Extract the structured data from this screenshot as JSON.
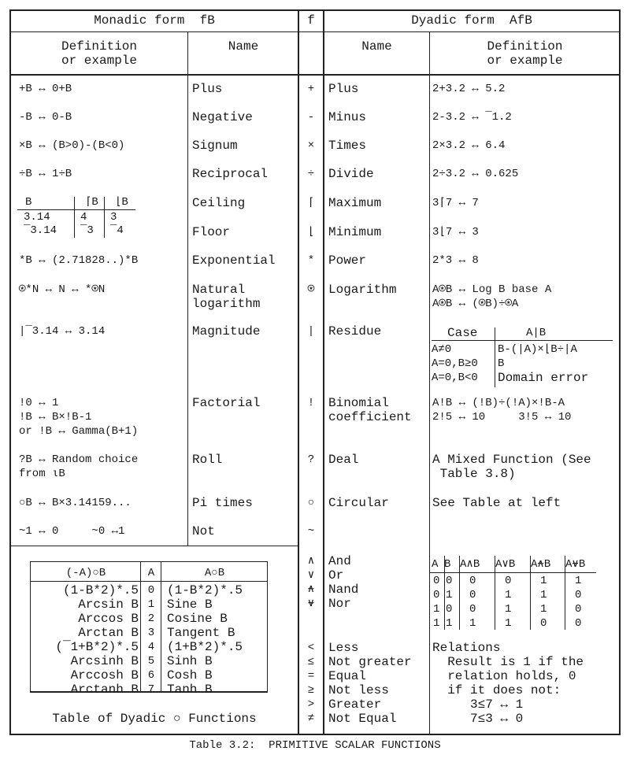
{
  "header": {
    "monadic": "Monadic form  fB",
    "f": "f",
    "dyadic": "Dyadic form  AfB"
  },
  "subheader": {
    "monadic_def": [
      "Definition",
      "or example"
    ],
    "monadic_name": "Name",
    "dyadic_name": "Name",
    "dyadic_def": [
      "Definition",
      "or example"
    ]
  },
  "monadic": [
    {
      "def": [
        "+B ↔ 0+B"
      ],
      "name": [
        "Plus"
      ]
    },
    {
      "def": [
        "-B ↔ 0-B"
      ],
      "name": [
        "Negative"
      ]
    },
    {
      "def": [
        "×B ↔ (B>0)-(B<0)"
      ],
      "name": [
        "Signum"
      ]
    },
    {
      "def": [
        "÷B ↔ 1÷B"
      ],
      "name": [
        "Reciprocal"
      ]
    },
    {
      "def": [],
      "name": [
        "Ceiling"
      ]
    },
    {
      "def": [],
      "name": [
        "Floor"
      ]
    },
    {
      "def": [
        "*B ↔ (2.71828..)*B"
      ],
      "name": [
        "Exponential"
      ]
    },
    {
      "def": [
        "⍟*N ↔ N ↔ *⍟N"
      ],
      "name": [
        "Natural",
        "logarithm"
      ]
    },
    {
      "def": [
        "|¯3.14 ↔ 3.14"
      ],
      "name": [
        "Magnitude"
      ]
    },
    {
      "def": [
        "!0 ↔ 1",
        "!B ↔ B×!B-1",
        "or !B ↔ Gamma(B+1)"
      ],
      "name": [
        "Factorial"
      ]
    },
    {
      "def": [
        "?B ↔ Random choice",
        "from ⍳B"
      ],
      "name": [
        "Roll"
      ]
    },
    {
      "def": [
        "○B ↔ B×3.14159..."
      ],
      "name": [
        "Pi times"
      ]
    },
    {
      "def": [
        "~1 ↔ 0     ~0 ↔1"
      ],
      "name": [
        "Not"
      ]
    }
  ],
  "ceiling_floor_table": {
    "headers": [
      "B",
      "⌈B",
      "⌊B"
    ],
    "rows": [
      [
        "3.14",
        "4",
        "3"
      ],
      [
        "¯3.14",
        "¯3",
        "¯4"
      ]
    ]
  },
  "symbols": [
    "+",
    "-",
    "×",
    "÷",
    "⌈",
    "⌊",
    "*",
    "⍟",
    "|",
    "!",
    "?",
    "○",
    "~",
    "∧",
    "∨",
    "⍲",
    "⍱",
    "<",
    "≤",
    "=",
    "≥",
    ">",
    "≠"
  ],
  "dyadic": [
    {
      "name": [
        "Plus"
      ],
      "def": [
        "2+3.2 ↔ 5.2"
      ]
    },
    {
      "name": [
        "Minus"
      ],
      "def": [
        "2-3.2 ↔ ¯1.2"
      ]
    },
    {
      "name": [
        "Times"
      ],
      "def": [
        "2×3.2 ↔ 6.4"
      ]
    },
    {
      "name": [
        "Divide"
      ],
      "def": [
        "2÷3.2 ↔ 0.625"
      ]
    },
    {
      "name": [
        "Maximum"
      ],
      "def": [
        "3⌈7 ↔ 7"
      ]
    },
    {
      "name": [
        "Minimum"
      ],
      "def": [
        "3⌊7 ↔ 3"
      ]
    },
    {
      "name": [
        "Power"
      ],
      "def": [
        "2*3 ↔ 8"
      ]
    },
    {
      "name": [
        "Logarithm"
      ],
      "def": [
        "A⍟B ↔ Log B base A",
        "A⍟B ↔ (⍟B)÷⍟A"
      ]
    },
    {
      "name": [
        "Residue"
      ],
      "def": []
    },
    {
      "name": [
        "Binomial",
        "coefficient"
      ],
      "def": [
        "A!B ↔ (!B)÷(!A)×!B-A",
        "2!5 ↔ 10     3!5 ↔ 10"
      ]
    },
    {
      "name": [
        "Deal"
      ],
      "def": [
        "A Mixed Function (See",
        " Table 3.8)"
      ]
    },
    {
      "name": [
        "Circular"
      ],
      "def": [
        "See Table at left"
      ]
    },
    {
      "name": [],
      "def": []
    },
    {
      "name": [
        "And"
      ],
      "def": []
    },
    {
      "name": [
        "Or"
      ],
      "def": []
    },
    {
      "name": [
        "Nand"
      ],
      "def": []
    },
    {
      "name": [
        "Nor"
      ],
      "def": []
    },
    {
      "name": [
        "Less"
      ],
      "def": [
        "Relations"
      ]
    },
    {
      "name": [
        "Not greater"
      ],
      "def": [
        "  Result is 1 if the"
      ]
    },
    {
      "name": [
        "Equal"
      ],
      "def": [
        "  relation holds, 0"
      ]
    },
    {
      "name": [
        "Not less"
      ],
      "def": [
        "  if it does not:"
      ]
    },
    {
      "name": [
        "Greater"
      ],
      "def": [
        "     3≤7 ↔ 1"
      ]
    },
    {
      "name": [
        "Not Equal"
      ],
      "def": [
        "     7≤3 ↔ 0"
      ]
    }
  ],
  "residue_table": {
    "headers": [
      "Case",
      "A|B"
    ],
    "rows": [
      [
        "A≠0",
        "B-(|A)×⌊B÷|A"
      ],
      [
        "A=0,B≥0",
        "B"
      ],
      [
        "A=0,B<0",
        "Domain error"
      ]
    ]
  },
  "boolean_table": {
    "headers": [
      "A",
      "B",
      "A∧B",
      "A∨B",
      "A⍲B",
      "A⍱B"
    ],
    "rows": [
      [
        "0",
        "0",
        "0",
        "0",
        "1",
        "1"
      ],
      [
        "0",
        "1",
        "0",
        "1",
        "1",
        "0"
      ],
      [
        "1",
        "0",
        "0",
        "1",
        "1",
        "0"
      ],
      [
        "1",
        "1",
        "1",
        "1",
        "0",
        "0"
      ]
    ]
  },
  "circular_table": {
    "headers": [
      "(-A)○B",
      "A",
      "A○B"
    ],
    "rows": [
      [
        "(1-B*2)*.5",
        "0",
        "(1-B*2)*.5"
      ],
      [
        "Arcsin B",
        "1",
        "Sine B"
      ],
      [
        "Arccos B",
        "2",
        "Cosine B"
      ],
      [
        "Arctan B",
        "3",
        "Tangent B"
      ],
      [
        "(¯1+B*2)*.5",
        "4",
        "(1+B*2)*.5"
      ],
      [
        "Arcsinh B",
        "5",
        "Sinh B"
      ],
      [
        "Arccosh B",
        "6",
        "Cosh B"
      ],
      [
        "Arctanh B",
        "7",
        "Tanh B"
      ]
    ],
    "caption": "Table of Dyadic ○ Functions"
  },
  "caption": "Table 3.2:  PRIMITIVE SCALAR FUNCTIONS"
}
